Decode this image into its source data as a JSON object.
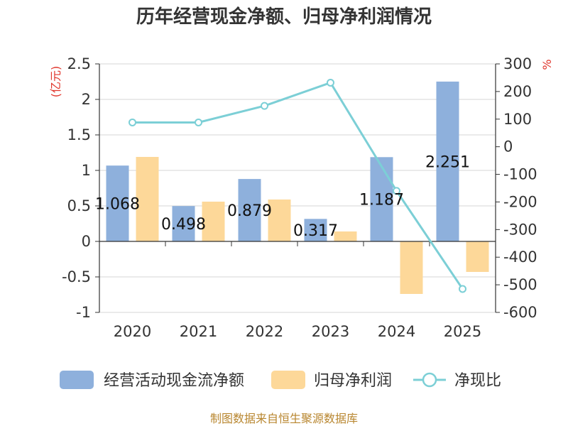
{
  "chart_data": {
    "type": "bar",
    "title": "历年经营现金净额、归母净利润情况",
    "categories": [
      "2020",
      "2021",
      "2022",
      "2023",
      "2024",
      "2025"
    ],
    "left_axis": {
      "unit": "(亿元)",
      "ylim": [
        -1,
        2.5
      ],
      "ticks": [
        2.5,
        2,
        1.5,
        1,
        0.5,
        0,
        -0.5,
        -1
      ],
      "tick_labels": [
        "2.5",
        "2",
        "1.5",
        "1",
        "0.5",
        "0",
        "-0.5",
        "-1"
      ]
    },
    "right_axis": {
      "unit": "%",
      "ylim": [
        -600,
        300
      ],
      "ticks": [
        300,
        200,
        100,
        0,
        -100,
        -200,
        -300,
        -400,
        -500,
        -600
      ],
      "tick_labels": [
        "300",
        "200",
        "100",
        "0",
        "-100",
        "-200",
        "-300",
        "-400",
        "-500",
        "-600"
      ]
    },
    "series": [
      {
        "name": "经营活动现金流净额",
        "type": "bar",
        "axis": "left",
        "color": "#8eb0dc",
        "values": [
          1.068,
          0.498,
          0.879,
          0.317,
          1.187,
          2.251
        ],
        "labels": [
          "1.068",
          "0.498",
          "0.879",
          "0.317",
          "1.187",
          "2.251"
        ]
      },
      {
        "name": "归母净利润",
        "type": "bar",
        "axis": "left",
        "color": "#fdd899",
        "values": [
          1.19,
          0.56,
          0.59,
          0.14,
          -0.74,
          -0.43
        ]
      },
      {
        "name": "净现比",
        "type": "line",
        "axis": "right",
        "color": "#7ccfd6",
        "values": [
          88,
          88,
          148,
          232,
          -160,
          -515
        ]
      }
    ],
    "legend_position": "bottom",
    "grid": true
  },
  "source_text": "制图数据来自恒生聚源数据库"
}
